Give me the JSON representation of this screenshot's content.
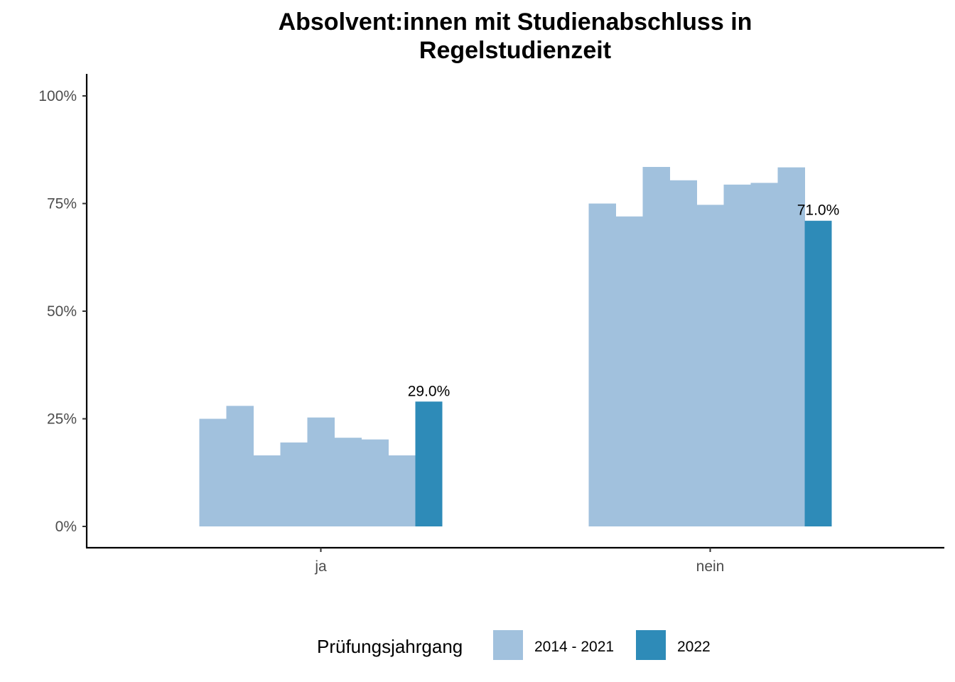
{
  "chart_data": {
    "type": "bar",
    "title_lines": [
      "Absolvent:innen mit Studienabschluss in",
      "Regelstudienzeit"
    ],
    "xlabel": "",
    "ylabel": "",
    "categories": [
      "ja",
      "nein"
    ],
    "y_ticks": [
      0,
      25,
      50,
      75,
      100
    ],
    "y_tick_labels": [
      "0%",
      "25%",
      "50%",
      "75%",
      "100%"
    ],
    "ylim": [
      -5,
      105
    ],
    "grid": false,
    "legend": {
      "title": "Prüfungsjahrgang",
      "position": "bottom",
      "entries": [
        {
          "label": "2014 - 2021",
          "color": "#a1c1dd"
        },
        {
          "label": "2022",
          "color": "#2e8bb8"
        }
      ]
    },
    "series": [
      {
        "name": "2014 - 2021",
        "color": "#a1c1dd",
        "values": [
          [
            25.0,
            28.0,
            16.5,
            19.5,
            25.3,
            20.6,
            20.2,
            16.5
          ],
          [
            75.0,
            72.0,
            83.5,
            80.4,
            74.7,
            79.4,
            79.8,
            83.4
          ]
        ]
      },
      {
        "name": "2022",
        "color": "#2e8bb8",
        "values": [
          29.0,
          71.0
        ],
        "labels": [
          "29.0%",
          "71.0%"
        ]
      }
    ]
  }
}
